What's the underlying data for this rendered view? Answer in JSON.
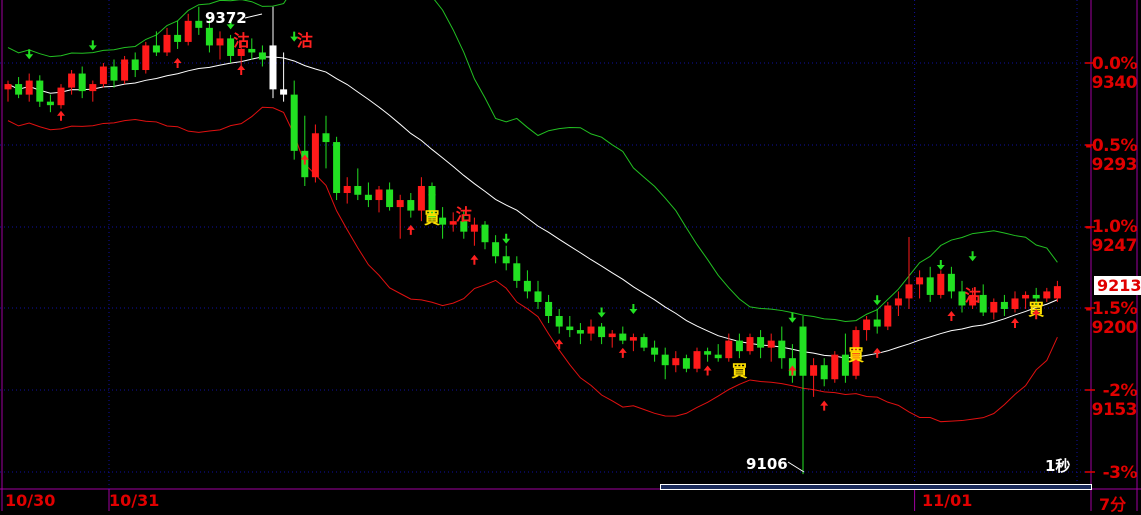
{
  "chart_data": {
    "type": "candlestick",
    "title": "",
    "colors": {
      "up": "#ff1a1a",
      "down": "#22e022",
      "ma": "#ffffff",
      "upper_band": "#22c022",
      "lower_band": "#e01010",
      "axis": "#a000a0",
      "grid": "#1010a0",
      "label": "#e00000"
    },
    "y_axis": {
      "reference_price": 9340,
      "ylim": [
        9060,
        9372
      ],
      "ticks": [
        {
          "percent": "0.0%",
          "price": "9340",
          "value": 9340
        },
        {
          "percent": "-0.5%",
          "price": "9293",
          "value": 9293
        },
        {
          "percent": "-1.0%",
          "price": "9247",
          "value": 9247
        },
        {
          "percent": "-1.5%",
          "price": "9200",
          "value": 9200
        },
        {
          "percent": "-2%",
          "price": "9153",
          "value": 9153
        },
        {
          "percent": "-3%",
          "price": "",
          "value": 9106
        }
      ]
    },
    "date_labels": [
      {
        "label": "10/30",
        "index": 0
      },
      {
        "label": "10/31",
        "index": 10
      },
      {
        "label": "11/01",
        "index": 86
      }
    ],
    "interval_label": "7分",
    "bollinger": {
      "period": 20,
      "k": 2
    },
    "candles_ohlc": [
      [
        9325,
        9330,
        9318,
        9328
      ],
      [
        9328,
        9332,
        9320,
        9322
      ],
      [
        9322,
        9334,
        9318,
        9330
      ],
      [
        9330,
        9333,
        9315,
        9318
      ],
      [
        9318,
        9322,
        9312,
        9316
      ],
      [
        9316,
        9328,
        9314,
        9326
      ],
      [
        9326,
        9336,
        9322,
        9334
      ],
      [
        9334,
        9338,
        9320,
        9324
      ],
      [
        9324,
        9330,
        9318,
        9328
      ],
      [
        9328,
        9340,
        9326,
        9338
      ],
      [
        9338,
        9342,
        9326,
        9330
      ],
      [
        9330,
        9344,
        9328,
        9342
      ],
      [
        9342,
        9346,
        9332,
        9336
      ],
      [
        9336,
        9352,
        9334,
        9350
      ],
      [
        9350,
        9358,
        9344,
        9346
      ],
      [
        9346,
        9360,
        9344,
        9356
      ],
      [
        9356,
        9364,
        9348,
        9352
      ],
      [
        9352,
        9368,
        9350,
        9364
      ],
      [
        9364,
        9372,
        9356,
        9360
      ],
      [
        9360,
        9366,
        9346,
        9350
      ],
      [
        9350,
        9358,
        9342,
        9354
      ],
      [
        9354,
        9356,
        9340,
        9344
      ],
      [
        9344,
        9352,
        9338,
        9348
      ],
      [
        9348,
        9354,
        9342,
        9346
      ],
      [
        9346,
        9350,
        9338,
        9342
      ],
      [
        9350,
        9372,
        9320,
        9325
      ],
      [
        9325,
        9346,
        9318,
        9322
      ],
      [
        9322,
        9330,
        9285,
        9290
      ],
      [
        9290,
        9310,
        9270,
        9275
      ],
      [
        9275,
        9305,
        9272,
        9300
      ],
      [
        9300,
        9310,
        9280,
        9295
      ],
      [
        9295,
        9298,
        9262,
        9266
      ],
      [
        9266,
        9275,
        9260,
        9270
      ],
      [
        9270,
        9280,
        9262,
        9265
      ],
      [
        9265,
        9272,
        9258,
        9262
      ],
      [
        9262,
        9270,
        9255,
        9268
      ],
      [
        9268,
        9272,
        9256,
        9258
      ],
      [
        9258,
        9265,
        9240,
        9262
      ],
      [
        9262,
        9266,
        9252,
        9256
      ],
      [
        9256,
        9275,
        9250,
        9270
      ],
      [
        9270,
        9272,
        9250,
        9252
      ],
      [
        9252,
        9258,
        9240,
        9248
      ],
      [
        9248,
        9255,
        9244,
        9250
      ],
      [
        9250,
        9256,
        9240,
        9244
      ],
      [
        9244,
        9252,
        9236,
        9248
      ],
      [
        9248,
        9250,
        9234,
        9238
      ],
      [
        9238,
        9242,
        9226,
        9230
      ],
      [
        9230,
        9236,
        9222,
        9226
      ],
      [
        9226,
        9230,
        9212,
        9216
      ],
      [
        9216,
        9222,
        9206,
        9210
      ],
      [
        9210,
        9216,
        9200,
        9204
      ],
      [
        9204,
        9208,
        9192,
        9196
      ],
      [
        9196,
        9200,
        9186,
        9190
      ],
      [
        9190,
        9196,
        9184,
        9188
      ],
      [
        9188,
        9192,
        9180,
        9186
      ],
      [
        9186,
        9194,
        9182,
        9190
      ],
      [
        9190,
        9192,
        9180,
        9184
      ],
      [
        9184,
        9188,
        9178,
        9186
      ],
      [
        9186,
        9190,
        9180,
        9182
      ],
      [
        9182,
        9186,
        9176,
        9184
      ],
      [
        9184,
        9186,
        9176,
        9178
      ],
      [
        9178,
        9182,
        9170,
        9174
      ],
      [
        9174,
        9178,
        9160,
        9168
      ],
      [
        9168,
        9176,
        9164,
        9172
      ],
      [
        9172,
        9174,
        9164,
        9166
      ],
      [
        9166,
        9178,
        9164,
        9176
      ],
      [
        9176,
        9178,
        9170,
        9174
      ],
      [
        9174,
        9180,
        9170,
        9172
      ],
      [
        9172,
        9186,
        9170,
        9182
      ],
      [
        9182,
        9186,
        9172,
        9176
      ],
      [
        9176,
        9186,
        9174,
        9184
      ],
      [
        9184,
        9188,
        9172,
        9178
      ],
      [
        9178,
        9186,
        9170,
        9182
      ],
      [
        9182,
        9190,
        9166,
        9172
      ],
      [
        9172,
        9180,
        9158,
        9162
      ],
      [
        9190,
        9196,
        9106,
        9162
      ],
      [
        9162,
        9172,
        9150,
        9168
      ],
      [
        9168,
        9172,
        9156,
        9160
      ],
      [
        9160,
        9176,
        9158,
        9174
      ],
      [
        9174,
        9186,
        9158,
        9162
      ],
      [
        9162,
        9190,
        9160,
        9188
      ],
      [
        9188,
        9196,
        9182,
        9194
      ],
      [
        9194,
        9200,
        9186,
        9190
      ],
      [
        9190,
        9204,
        9188,
        9202
      ],
      [
        9202,
        9210,
        9196,
        9206
      ],
      [
        9206,
        9241,
        9200,
        9214
      ],
      [
        9214,
        9222,
        9206,
        9218
      ],
      [
        9218,
        9224,
        9204,
        9208
      ],
      [
        9208,
        9222,
        9206,
        9220
      ],
      [
        9220,
        9224,
        9206,
        9210
      ],
      [
        9210,
        9216,
        9198,
        9202
      ],
      [
        9202,
        9212,
        9200,
        9208
      ],
      [
        9208,
        9214,
        9196,
        9198
      ],
      [
        9198,
        9206,
        9194,
        9204
      ],
      [
        9204,
        9208,
        9196,
        9200
      ],
      [
        9200,
        9210,
        9198,
        9206
      ],
      [
        9206,
        9210,
        9200,
        9208
      ],
      [
        9208,
        9212,
        9202,
        9206
      ],
      [
        9206,
        9212,
        9204,
        9210
      ],
      [
        9206,
        9216,
        9204,
        9213
      ]
    ],
    "white_candle_indices": [
      25,
      26
    ],
    "signals": [
      {
        "index": 2,
        "kind": "down-arrow",
        "price": 9345
      },
      {
        "index": 5,
        "kind": "up-arrow",
        "price": 9310
      },
      {
        "index": 8,
        "kind": "down-arrow",
        "price": 9350
      },
      {
        "index": 16,
        "kind": "up-arrow",
        "price": 9340
      },
      {
        "index": 21,
        "kind": "down-arrow",
        "price": 9362
      },
      {
        "index": 22,
        "kind": "sell",
        "price": 9353
      },
      {
        "index": 22,
        "kind": "up-arrow",
        "price": 9336
      },
      {
        "index": 27,
        "kind": "down-arrow",
        "price": 9355
      },
      {
        "index": 28,
        "kind": "sell",
        "price": 9353
      },
      {
        "index": 28,
        "kind": "up-arrow",
        "price": 9285
      },
      {
        "index": 40,
        "kind": "down-arrow",
        "price": 9265
      },
      {
        "index": 38,
        "kind": "up-arrow",
        "price": 9245
      },
      {
        "index": 40,
        "kind": "buy",
        "price": 9252
      },
      {
        "index": 43,
        "kind": "sell",
        "price": 9254
      },
      {
        "index": 44,
        "kind": "up-arrow",
        "price": 9228
      },
      {
        "index": 47,
        "kind": "down-arrow",
        "price": 9240
      },
      {
        "index": 52,
        "kind": "up-arrow",
        "price": 9180
      },
      {
        "index": 56,
        "kind": "down-arrow",
        "price": 9198
      },
      {
        "index": 58,
        "kind": "up-arrow",
        "price": 9175
      },
      {
        "index": 59,
        "kind": "down-arrow",
        "price": 9200
      },
      {
        "index": 69,
        "kind": "buy",
        "price": 9165
      },
      {
        "index": 66,
        "kind": "up-arrow",
        "price": 9165
      },
      {
        "index": 74,
        "kind": "up-arrow",
        "price": 9165
      },
      {
        "index": 74,
        "kind": "down-arrow",
        "price": 9195
      },
      {
        "index": 77,
        "kind": "up-arrow",
        "price": 9145
      },
      {
        "index": 80,
        "kind": "buy",
        "price": 9174
      },
      {
        "index": 82,
        "kind": "up-arrow",
        "price": 9175
      },
      {
        "index": 82,
        "kind": "down-arrow",
        "price": 9205
      },
      {
        "index": 88,
        "kind": "down-arrow",
        "price": 9225
      },
      {
        "index": 89,
        "kind": "up-arrow",
        "price": 9196
      },
      {
        "index": 91,
        "kind": "sell",
        "price": 9208
      },
      {
        "index": 91,
        "kind": "down-arrow",
        "price": 9230
      },
      {
        "index": 95,
        "kind": "up-arrow",
        "price": 9192
      },
      {
        "index": 97,
        "kind": "buy",
        "price": 9200
      },
      {
        "index": 97,
        "kind": "up-arrow",
        "price": 9197
      }
    ],
    "signal_text": {
      "buy": "買",
      "sell": "沽"
    },
    "high_label": "9372",
    "low_label": "9106",
    "current_price": "9213",
    "timer_label": "1秒"
  }
}
